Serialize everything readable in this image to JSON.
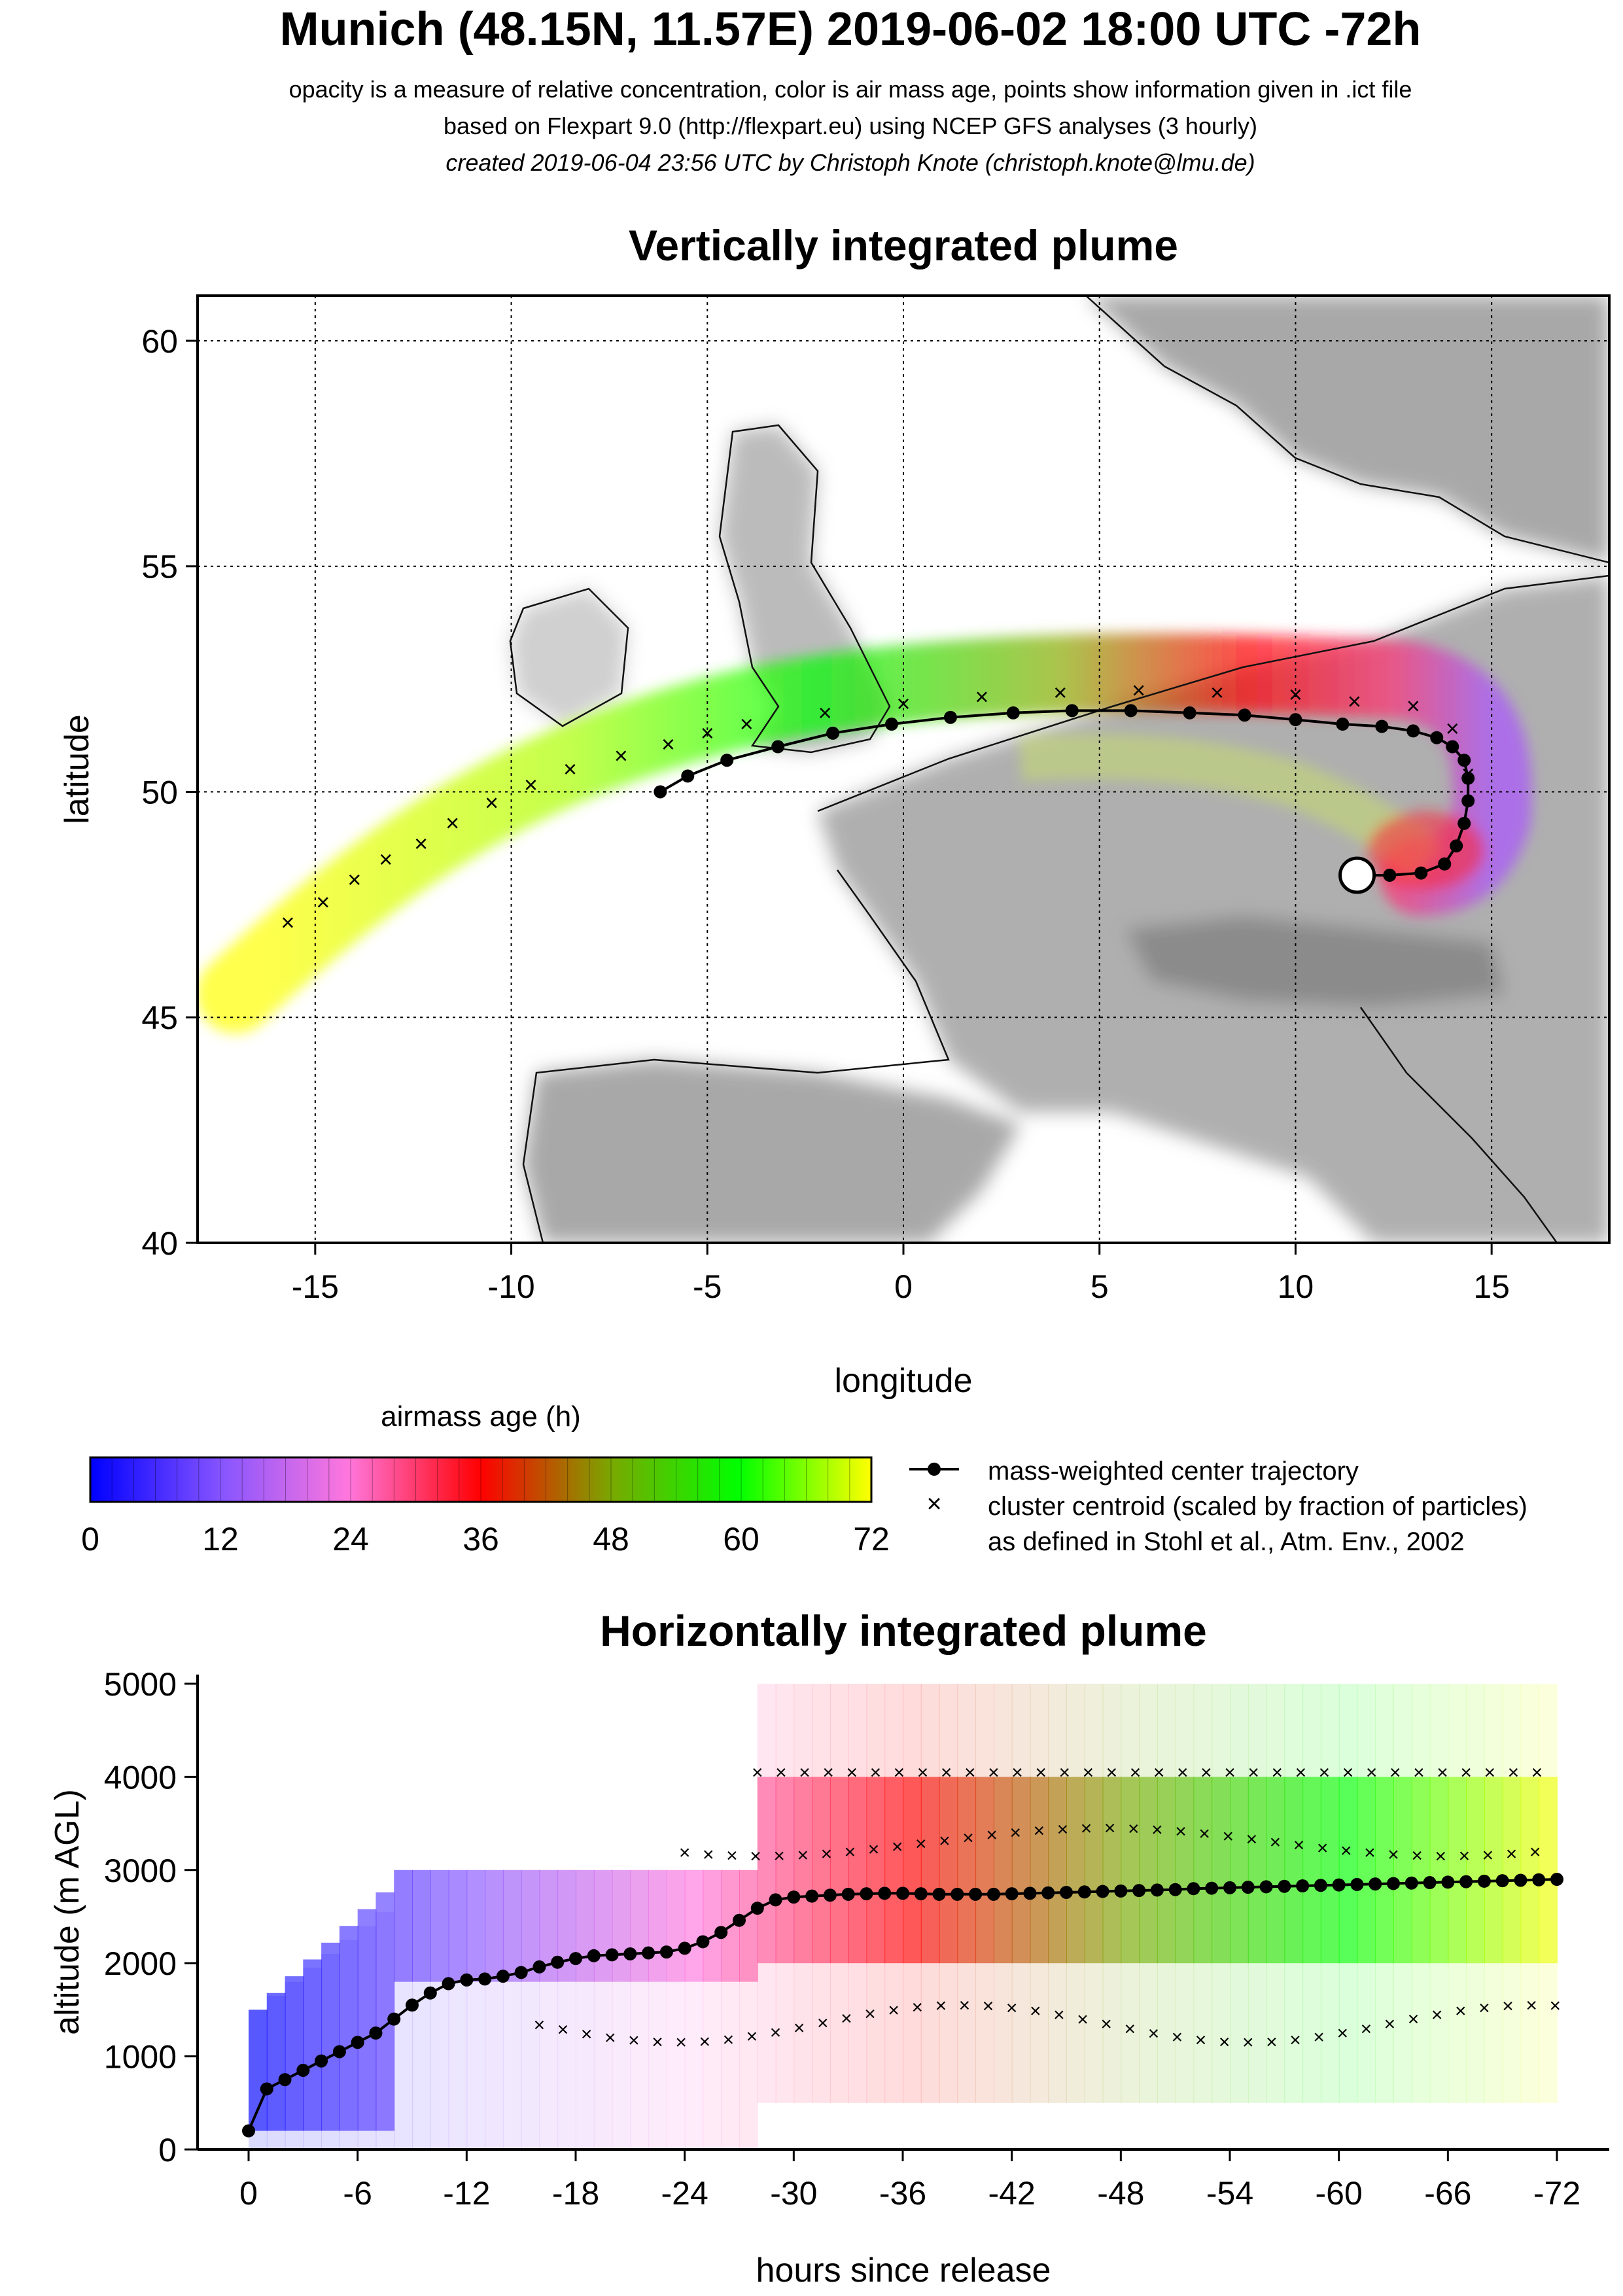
{
  "header": {
    "title": "Munich (48.15N, 11.57E) 2019-06-02 18:00 UTC -72h",
    "line1": "opacity is a measure of relative concentration, color is air mass age, points show information given in .ict file",
    "line2": "based on Flexpart 9.0 (http://flexpart.eu) using NCEP GFS analyses (3 hourly)",
    "line3": "created 2019-06-04 23:56 UTC by Christoph Knote (christoph.knote@lmu.de)"
  },
  "colors": {
    "age_0": "#0000ff",
    "age_24": "#ff66cc",
    "age_36": "#ff0000",
    "age_60": "#00ff00",
    "age_72": "#ffff00",
    "land": "#999999",
    "trajectory": "#000000"
  },
  "legend": {
    "colorbar_title": "airmass age (h)",
    "colorbar_ticks": [
      "0",
      "12",
      "24",
      "36",
      "48",
      "60",
      "72"
    ],
    "trajectory_label": "mass-weighted center trajectory",
    "cluster_label": "cluster centroid (scaled by fraction of particles)",
    "cluster_ref": "as defined in Stohl et al., Atm. Env., 2002"
  },
  "chart_data": [
    {
      "type": "scatter",
      "title": "Vertically integrated plume",
      "xlabel": "longitude",
      "ylabel": "latitude",
      "xlim": [
        -18,
        18
      ],
      "ylim": [
        40,
        61
      ],
      "xticks": [
        "-15",
        "-10",
        "-5",
        "0",
        "5",
        "10",
        "15"
      ],
      "yticks": [
        "40",
        "45",
        "50",
        "55",
        "60"
      ],
      "grid": true,
      "release_point": {
        "lon": 11.57,
        "lat": 48.15
      },
      "series": [
        {
          "name": "mass-weighted center trajectory",
          "lon": [
            11.6,
            12.4,
            13.2,
            13.8,
            14.1,
            14.3,
            14.4,
            14.4,
            14.3,
            14.0,
            13.6,
            13.0,
            12.2,
            11.2,
            10.0,
            8.7,
            7.3,
            5.8,
            4.3,
            2.8,
            1.2,
            -0.3,
            -1.8,
            -3.2,
            -4.5,
            -5.5,
            -6.2
          ],
          "lat": [
            48.15,
            48.15,
            48.2,
            48.4,
            48.8,
            49.3,
            49.8,
            50.3,
            50.7,
            51.0,
            51.2,
            51.35,
            51.45,
            51.5,
            51.6,
            51.7,
            51.75,
            51.8,
            51.8,
            51.75,
            51.65,
            51.5,
            51.3,
            51.0,
            50.7,
            50.35,
            50.0
          ]
        },
        {
          "name": "cluster centroid",
          "lon": [
            14.4,
            14.0,
            13.0,
            11.5,
            10.0,
            8.0,
            6.0,
            4.0,
            2.0,
            0.0,
            -2.0,
            -4.0,
            -5.0,
            -6.0,
            -7.2,
            -8.5,
            -9.5,
            -10.5,
            -11.5,
            -12.3,
            -13.2,
            -14.0,
            -14.8,
            -15.7
          ],
          "lat": [
            50.4,
            51.4,
            51.9,
            52.0,
            52.15,
            52.2,
            52.25,
            52.2,
            52.1,
            51.95,
            51.75,
            51.5,
            51.3,
            51.05,
            50.8,
            50.5,
            50.15,
            49.75,
            49.3,
            48.85,
            48.5,
            48.05,
            47.55,
            47.1
          ]
        }
      ]
    },
    {
      "type": "scatter",
      "title": "Horizontally integrated plume",
      "xlabel": "hours since release",
      "ylabel": "altitude (m AGL)",
      "xlim": [
        0,
        -72
      ],
      "ylim": [
        0,
        5000
      ],
      "xticks": [
        "0",
        "-6",
        "-12",
        "-18",
        "-24",
        "-30",
        "-36",
        "-42",
        "-48",
        "-54",
        "-60",
        "-66",
        "-72"
      ],
      "yticks": [
        "0",
        "1000",
        "2000",
        "3000",
        "4000",
        "5000"
      ],
      "series": [
        {
          "name": "mass-weighted center trajectory",
          "x": [
            0,
            -1,
            -2,
            -3,
            -4,
            -5,
            -6,
            -7,
            -8,
            -9,
            -10,
            -11,
            -12,
            -13,
            -14,
            -15,
            -16,
            -17,
            -18,
            -19,
            -20,
            -21,
            -22,
            -23,
            -24,
            -25,
            -26,
            -27,
            -28,
            -29,
            -30,
            -31,
            -32,
            -33,
            -34,
            -35,
            -36,
            -37,
            -38,
            -39,
            -40,
            -41,
            -42,
            -43,
            -44,
            -45,
            -46,
            -47,
            -48,
            -49,
            -50,
            -51,
            -52,
            -53,
            -54,
            -55,
            -56,
            -57,
            -58,
            -59,
            -60,
            -61,
            -62,
            -63,
            -64,
            -65,
            -66,
            -67,
            -68,
            -69,
            -70,
            -71,
            -72
          ],
          "y": [
            200,
            650,
            750,
            850,
            950,
            1050,
            1150,
            1250,
            1400,
            1550,
            1680,
            1780,
            1820,
            1830,
            1860,
            1900,
            1960,
            2010,
            2050,
            2080,
            2090,
            2100,
            2110,
            2120,
            2160,
            2230,
            2330,
            2460,
            2590,
            2680,
            2710,
            2720,
            2730,
            2740,
            2745,
            2750,
            2750,
            2745,
            2740,
            2740,
            2740,
            2740,
            2745,
            2750,
            2755,
            2760,
            2765,
            2770,
            2775,
            2780,
            2785,
            2790,
            2800,
            2805,
            2810,
            2815,
            2820,
            2825,
            2830,
            2835,
            2840,
            2845,
            2850,
            2855,
            2860,
            2865,
            2870,
            2875,
            2880,
            2885,
            2890,
            2895,
            2900
          ]
        }
      ]
    }
  ]
}
